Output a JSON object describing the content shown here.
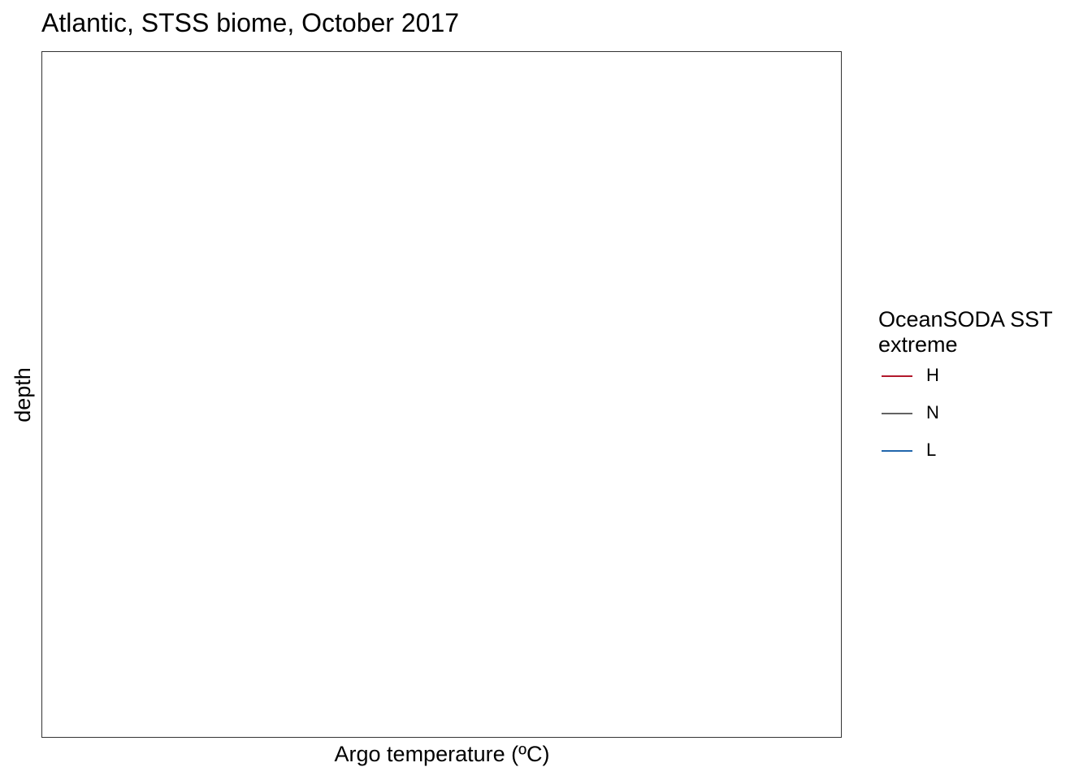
{
  "chart_data": {
    "type": "line",
    "title": "Atlantic, STSS biome, October 2017",
    "xlabel": "Argo temperature (ºC)",
    "ylabel": "depth",
    "series": [],
    "grid": false,
    "legend": {
      "position": "right",
      "title_line1": "OceanSODA SST",
      "title_line2": "extreme",
      "entries": [
        {
          "label": "H",
          "color": "#b2182b"
        },
        {
          "label": "N",
          "color": "#636363"
        },
        {
          "label": "L",
          "color": "#2166ac"
        }
      ]
    }
  }
}
